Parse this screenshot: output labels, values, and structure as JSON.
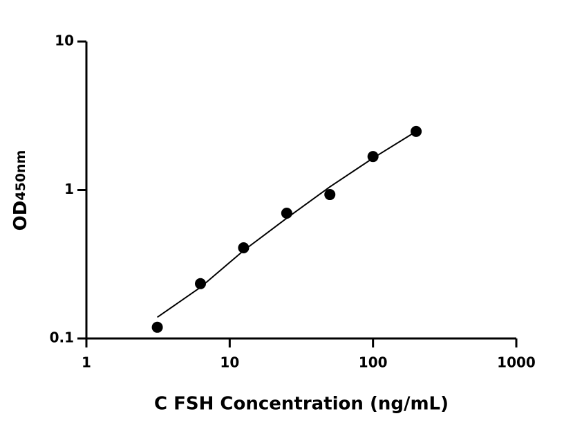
{
  "chart_data": {
    "type": "scatter",
    "xlabel": "C FSH Concentration (ng/mL)",
    "ylabel": "OD",
    "ylabel_sub": "450nm",
    "x": [
      3.125,
      6.25,
      12.5,
      25,
      50,
      100,
      200
    ],
    "series": [
      {
        "mode": "markers",
        "color": "#000000",
        "values": [
          0.119,
          0.234,
          0.408,
          0.698,
          0.932,
          1.68,
          2.48
        ]
      },
      {
        "mode": "line",
        "color": "#000000",
        "values": [
          0.139,
          0.221,
          0.391,
          0.646,
          1.05,
          1.64,
          2.48
        ]
      }
    ],
    "xscale": "log",
    "yscale": "log",
    "xlim": [
      1,
      1000
    ],
    "ylim": [
      0.1,
      10
    ],
    "xticks": [
      1,
      10,
      100,
      1000
    ],
    "yticks": [
      0.1,
      1,
      10
    ]
  }
}
